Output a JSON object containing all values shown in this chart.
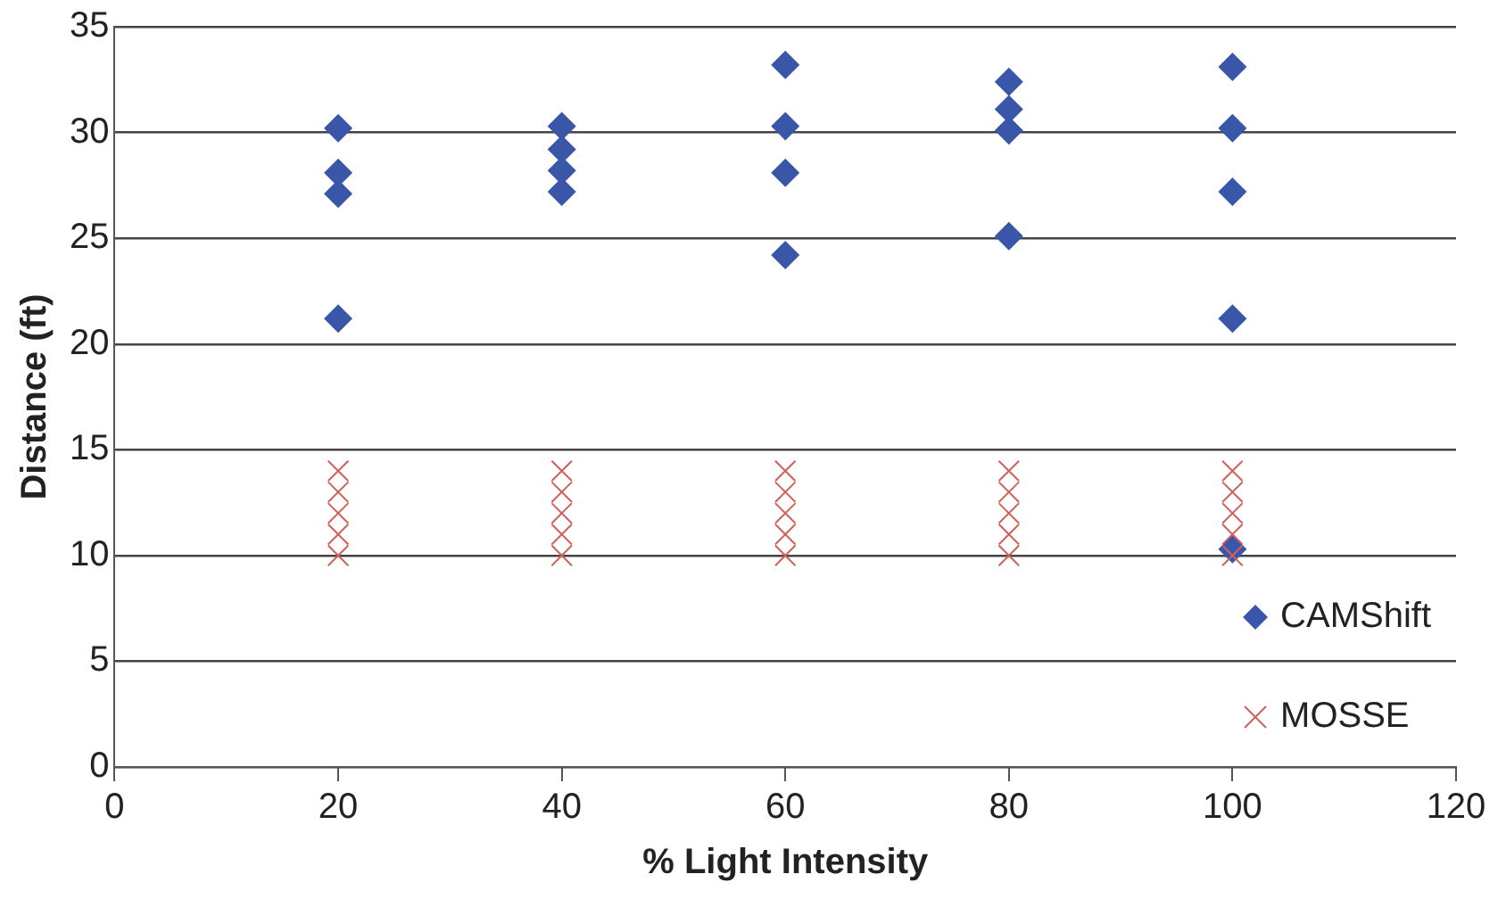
{
  "chart_data": {
    "type": "scatter",
    "xlabel": "% Light Intensity",
    "ylabel": "Distance (ft)",
    "xlim": [
      0,
      120
    ],
    "xticks": [
      0,
      20,
      40,
      60,
      80,
      100,
      120
    ],
    "ylim": [
      0,
      35
    ],
    "yticks": [
      0,
      5,
      10,
      15,
      20,
      25,
      30,
      35
    ],
    "grid": "y",
    "legend": "bottom right",
    "series": [
      {
        "name": "CAMShift",
        "color": "#3a56a8",
        "marker": "diamond",
        "x": [
          20,
          20,
          20,
          20,
          40,
          40,
          40,
          40,
          60,
          60,
          60,
          60,
          80,
          80,
          80,
          80,
          100,
          100,
          100,
          100,
          100
        ],
        "values": [
          30.2,
          28.1,
          27.1,
          21.2,
          30.3,
          29.2,
          28.2,
          27.2,
          33.2,
          30.3,
          28.1,
          24.2,
          32.4,
          31.1,
          30.1,
          25.1,
          33.1,
          30.2,
          27.2,
          21.2,
          10.3
        ]
      },
      {
        "name": "MOSSE",
        "color": "#d0605a",
        "marker": "cross",
        "x": [
          20,
          20,
          20,
          20,
          20,
          40,
          40,
          40,
          40,
          40,
          60,
          60,
          60,
          60,
          60,
          80,
          80,
          80,
          80,
          80,
          100,
          100,
          100,
          100,
          100
        ],
        "values": [
          10,
          11,
          12,
          13,
          14,
          10,
          11,
          12,
          13,
          14,
          10,
          11,
          12,
          13,
          14,
          10,
          11,
          12,
          13,
          14,
          10,
          11,
          12,
          13,
          14
        ]
      }
    ]
  }
}
